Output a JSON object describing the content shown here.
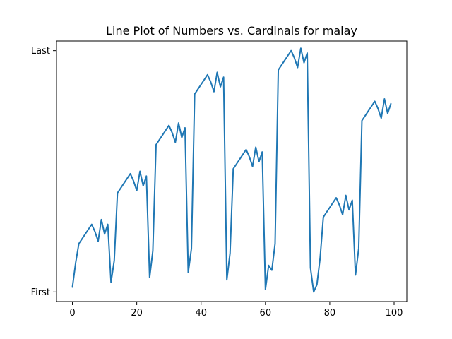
{
  "chart_data": {
    "type": "line",
    "title": "Line Plot of Numbers vs. Cardinals for malay",
    "xlabel": "",
    "ylabel": "",
    "xlim": [
      -4.95,
      103.95
    ],
    "ylim": [
      -0.04,
      1.04
    ],
    "x_ticks": [
      0,
      20,
      40,
      60,
      80,
      100
    ],
    "x_tick_labels": [
      "0",
      "20",
      "40",
      "60",
      "80",
      "100"
    ],
    "y_ticks": [
      0,
      1
    ],
    "y_tick_labels": [
      "First",
      "Last"
    ],
    "grid": false,
    "series": [
      {
        "color": "#1f77b4",
        "x": [
          0,
          1,
          2,
          3,
          4,
          5,
          6,
          7,
          8,
          9,
          10,
          11,
          12,
          13,
          14,
          15,
          16,
          17,
          18,
          19,
          20,
          21,
          22,
          23,
          24,
          25,
          26,
          27,
          28,
          29,
          30,
          31,
          32,
          33,
          34,
          35,
          36,
          37,
          38,
          39,
          40,
          41,
          42,
          43,
          44,
          45,
          46,
          47,
          48,
          49,
          50,
          51,
          52,
          53,
          54,
          55,
          56,
          57,
          58,
          59,
          60,
          61,
          62,
          63,
          64,
          65,
          66,
          67,
          68,
          69,
          70,
          71,
          72,
          73,
          74,
          75,
          76,
          77,
          78,
          79,
          80,
          81,
          82,
          83,
          84,
          85,
          86,
          87,
          88,
          89,
          90,
          91,
          92,
          93,
          94,
          95,
          96,
          97,
          98,
          99
        ],
        "y": [
          0.02,
          0.12,
          0.2,
          0.22,
          0.24,
          0.26,
          0.28,
          0.25,
          0.21,
          0.3,
          0.24,
          0.28,
          0.04,
          0.13,
          0.41,
          0.43,
          0.45,
          0.47,
          0.49,
          0.46,
          0.42,
          0.5,
          0.44,
          0.48,
          0.06,
          0.17,
          0.61,
          0.63,
          0.65,
          0.67,
          0.69,
          0.66,
          0.62,
          0.7,
          0.64,
          0.68,
          0.08,
          0.18,
          0.82,
          0.84,
          0.86,
          0.88,
          0.9,
          0.87,
          0.83,
          0.91,
          0.85,
          0.89,
          0.05,
          0.16,
          0.51,
          0.53,
          0.55,
          0.57,
          0.59,
          0.56,
          0.52,
          0.6,
          0.54,
          0.58,
          0.01,
          0.11,
          0.09,
          0.2,
          0.92,
          0.94,
          0.96,
          0.98,
          1.0,
          0.97,
          0.93,
          1.01,
          0.95,
          0.99,
          0.1,
          0.0,
          0.03,
          0.14,
          0.31,
          0.33,
          0.35,
          0.37,
          0.39,
          0.36,
          0.32,
          0.4,
          0.34,
          0.38,
          0.07,
          0.18,
          0.71,
          0.73,
          0.75,
          0.77,
          0.79,
          0.76,
          0.72,
          0.8,
          0.74,
          0.78
        ]
      }
    ]
  }
}
